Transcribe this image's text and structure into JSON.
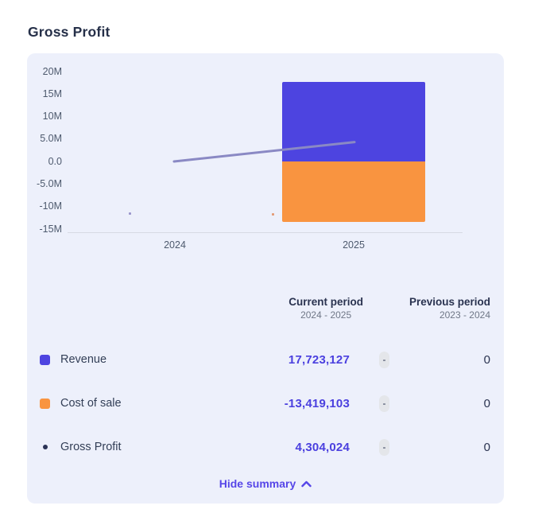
{
  "page": {
    "title": "Gross Profit"
  },
  "chart_data": {
    "type": "bar-line-combo",
    "categories": [
      "2024",
      "2025"
    ],
    "series": [
      {
        "name": "Revenue",
        "type": "bar",
        "color": "#4d44e0",
        "values": [
          0,
          17723127
        ]
      },
      {
        "name": "Cost of sale",
        "type": "bar",
        "color": "#f99440",
        "values": [
          0,
          -13419103
        ]
      },
      {
        "name": "Gross Profit",
        "type": "line",
        "color": "#8a89c4",
        "values": [
          0,
          4304024
        ]
      }
    ],
    "title": "Gross Profit",
    "xlabel": "",
    "ylabel": "",
    "ylim": [
      -15000000,
      20000000
    ],
    "y_ticks": [
      "20M",
      "15M",
      "10M",
      "5.0M",
      "0.0",
      "-5.0M",
      "-10M",
      "-15M"
    ],
    "grid": false,
    "legend_position": "none",
    "panel_background": "#edf0fb"
  },
  "summary": {
    "columns": [
      {
        "label": "Current period",
        "sublabel": "2024 - 2025"
      },
      {
        "label": "Previous period",
        "sublabel": "2023 - 2024"
      }
    ],
    "rows": [
      {
        "label": "Revenue",
        "current": "17,723,127",
        "delta": "-",
        "previous": "0",
        "swatch_color": "#4d44e0"
      },
      {
        "label": "Cost of sale",
        "current": "-13,419,103",
        "delta": "-",
        "previous": "0",
        "swatch_color": "#f99440"
      },
      {
        "label": "Gross Profit",
        "current": "4,304,024",
        "delta": "-",
        "previous": "0",
        "swatch_color": "#2b3356"
      }
    ],
    "toggle_label": "Hide summary"
  }
}
